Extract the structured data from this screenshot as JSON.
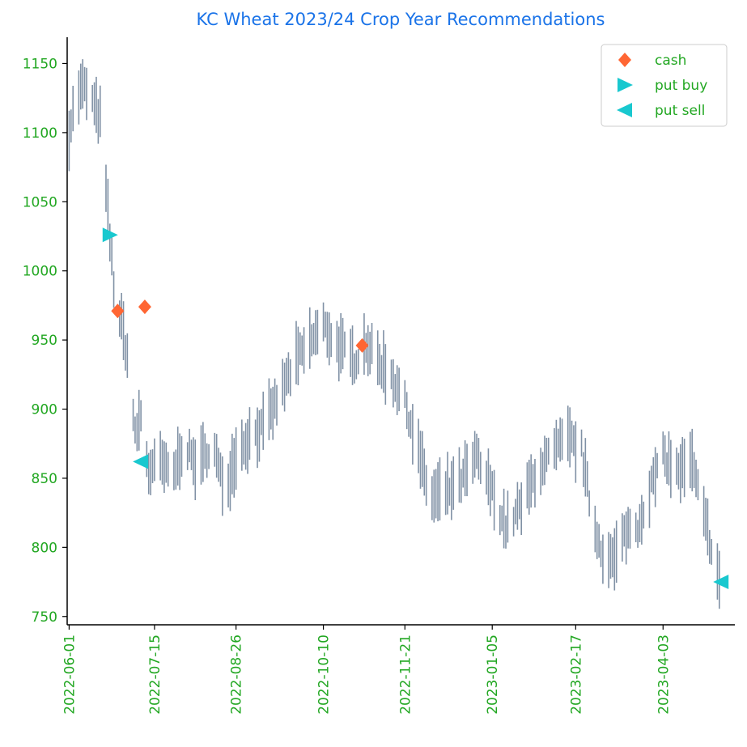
{
  "chart_data": {
    "type": "bar",
    "title": "KC  Wheat 2023/24 Crop Year Recommendations",
    "xlabel": "",
    "ylabel": "",
    "x_range": [
      "2022-05-31",
      "2023-05-10"
    ],
    "ylim": [
      744,
      1169
    ],
    "y_ticks": [
      750,
      800,
      850,
      900,
      950,
      1000,
      1050,
      1100,
      1150
    ],
    "x_ticks": [
      "2022-06-01",
      "2022-07-15",
      "2022-08-26",
      "2022-10-10",
      "2022-11-21",
      "2023-01-05",
      "2023-02-17",
      "2023-04-03"
    ],
    "grid": false,
    "legend_position": "top-right",
    "colors": {
      "title": "#1a73e8",
      "ticks": "#22a722",
      "bars": "#8091a5",
      "cash": "#ff6633",
      "put_buy": "#19c8cf",
      "put_sell": "#19c8cf",
      "axis": "#000000"
    },
    "legend": [
      {
        "key": "cash",
        "label": "cash",
        "marker": "diamond"
      },
      {
        "key": "put_buy",
        "label": "put buy",
        "marker": "triangle-right"
      },
      {
        "key": "put_sell",
        "label": "put sell",
        "marker": "triangle-left"
      }
    ],
    "anchors": [
      [
        "2022-06-01",
        1100
      ],
      [
        "2022-06-04",
        1122
      ],
      [
        "2022-06-08",
        1133
      ],
      [
        "2022-06-12",
        1126
      ],
      [
        "2022-06-15",
        1115
      ],
      [
        "2022-06-18",
        1108
      ],
      [
        "2022-06-20",
        1058
      ],
      [
        "2022-06-22",
        1022
      ],
      [
        "2022-06-25",
        975
      ],
      [
        "2022-06-28",
        962
      ],
      [
        "2022-07-02",
        930
      ],
      [
        "2022-07-05",
        880
      ],
      [
        "2022-07-08",
        895
      ],
      [
        "2022-07-12",
        855
      ],
      [
        "2022-07-18",
        862
      ],
      [
        "2022-07-24",
        850
      ],
      [
        "2022-07-30",
        875
      ],
      [
        "2022-08-06",
        858
      ],
      [
        "2022-08-14",
        875
      ],
      [
        "2022-08-20",
        840
      ],
      [
        "2022-08-26",
        868
      ],
      [
        "2022-09-02",
        880
      ],
      [
        "2022-09-10",
        888
      ],
      [
        "2022-09-18",
        912
      ],
      [
        "2022-09-26",
        935
      ],
      [
        "2022-10-04",
        950
      ],
      [
        "2022-10-10",
        960
      ],
      [
        "2022-10-18",
        945
      ],
      [
        "2022-10-26",
        935
      ],
      [
        "2022-11-01",
        948
      ],
      [
        "2022-11-07",
        935
      ],
      [
        "2022-11-14",
        925
      ],
      [
        "2022-11-21",
        905
      ],
      [
        "2022-11-28",
        870
      ],
      [
        "2022-12-04",
        835
      ],
      [
        "2022-12-12",
        840
      ],
      [
        "2022-12-20",
        848
      ],
      [
        "2022-12-28",
        865
      ],
      [
        "2023-01-05",
        840
      ],
      [
        "2023-01-12",
        815
      ],
      [
        "2023-01-20",
        830
      ],
      [
        "2023-01-28",
        855
      ],
      [
        "2023-02-05",
        868
      ],
      [
        "2023-02-13",
        878
      ],
      [
        "2023-02-20",
        870
      ],
      [
        "2023-02-26",
        818
      ],
      [
        "2023-03-04",
        792
      ],
      [
        "2023-03-09",
        790
      ],
      [
        "2023-03-15",
        812
      ],
      [
        "2023-03-21",
        815
      ],
      [
        "2023-03-28",
        845
      ],
      [
        "2023-04-03",
        866
      ],
      [
        "2023-04-10",
        855
      ],
      [
        "2023-04-18",
        860
      ],
      [
        "2023-04-24",
        822
      ],
      [
        "2023-04-29",
        795
      ],
      [
        "2023-05-02",
        775
      ]
    ],
    "points": {
      "cash": [
        [
          "2022-06-26",
          971
        ],
        [
          "2022-07-10",
          974
        ],
        [
          "2022-10-30",
          946
        ]
      ],
      "put_buy": [
        [
          "2022-06-22",
          1026
        ]
      ],
      "put_sell": [
        [
          "2022-07-08",
          862
        ],
        [
          "2023-05-03",
          775
        ]
      ]
    }
  }
}
